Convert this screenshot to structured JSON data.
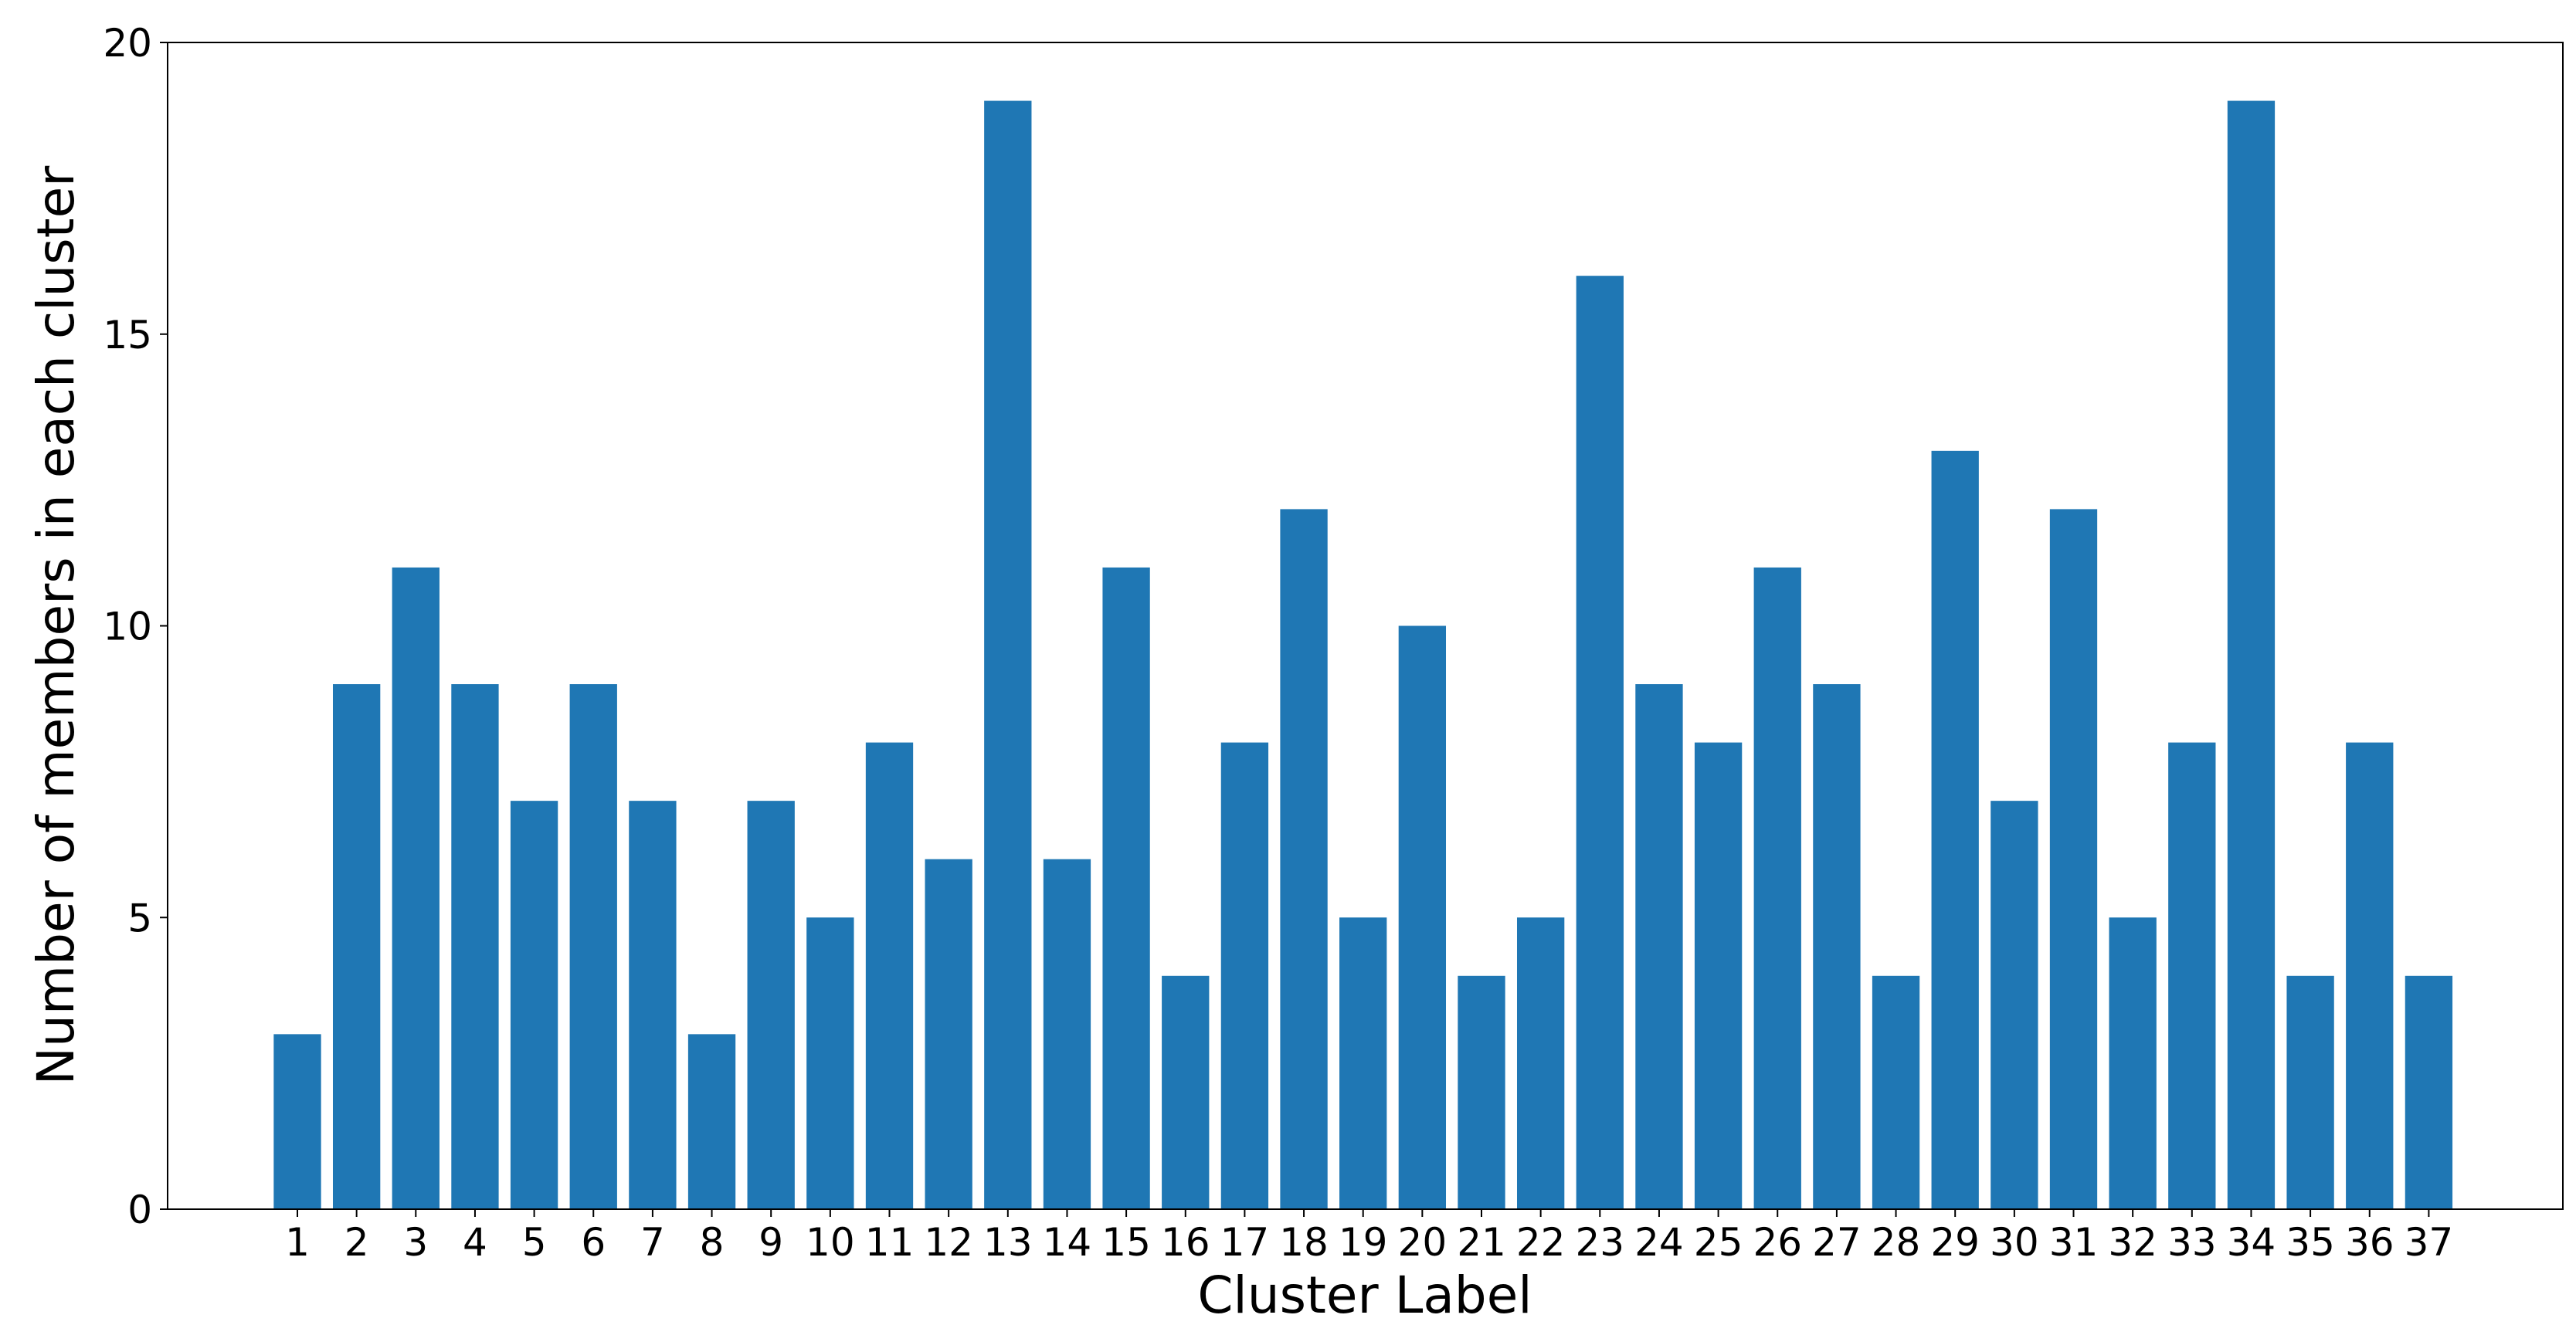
{
  "chart_data": {
    "type": "bar",
    "xlabel": "Cluster Label",
    "ylabel": "Number of members in each cluster",
    "categories": [
      "1",
      "2",
      "3",
      "4",
      "5",
      "6",
      "7",
      "8",
      "9",
      "10",
      "11",
      "12",
      "13",
      "14",
      "15",
      "16",
      "17",
      "18",
      "19",
      "20",
      "21",
      "22",
      "23",
      "24",
      "25",
      "26",
      "27",
      "28",
      "29",
      "30",
      "31",
      "32",
      "33",
      "34",
      "35",
      "36",
      "37"
    ],
    "values": [
      3,
      9,
      11,
      9,
      7,
      9,
      7,
      3,
      7,
      5,
      8,
      6,
      19,
      6,
      11,
      4,
      8,
      12,
      5,
      10,
      4,
      5,
      16,
      9,
      8,
      11,
      9,
      4,
      13,
      7,
      12,
      5,
      8,
      19,
      4,
      8,
      4
    ],
    "color": "#1f77b4",
    "ylim": [
      0,
      20
    ],
    "yticks": [
      0,
      5,
      10,
      15,
      20
    ],
    "grid": false
  }
}
